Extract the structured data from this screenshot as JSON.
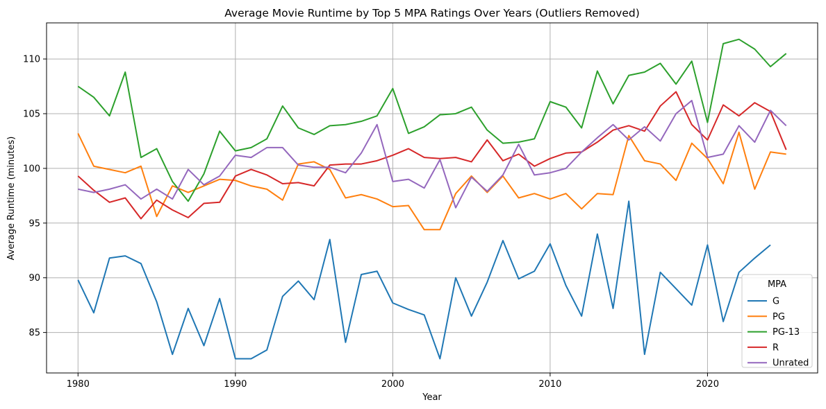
{
  "chart_data": {
    "type": "line",
    "title": "Average Movie Runtime by Top 5 MPA Ratings Over Years (Outliers Removed)",
    "xlabel": "Year",
    "ylabel": "Average Runtime (minutes)",
    "xlim": [
      1978,
      2027
    ],
    "ylim": [
      81.3,
      113.3
    ],
    "xticks": [
      1980,
      1990,
      2000,
      2010,
      2020
    ],
    "yticks": [
      85,
      90,
      95,
      100,
      105,
      110
    ],
    "grid": true,
    "legend": {
      "title": "MPA",
      "position": "lower right"
    },
    "x": [
      1980,
      1981,
      1982,
      1983,
      1984,
      1985,
      1986,
      1987,
      1988,
      1989,
      1990,
      1991,
      1992,
      1993,
      1994,
      1995,
      1996,
      1997,
      1998,
      1999,
      2000,
      2001,
      2002,
      2003,
      2004,
      2005,
      2006,
      2007,
      2008,
      2009,
      2010,
      2011,
      2012,
      2013,
      2014,
      2015,
      2016,
      2017,
      2018,
      2019,
      2020,
      2021,
      2022,
      2023,
      2024,
      2025
    ],
    "series": [
      {
        "name": "G",
        "color": "#1f77b4",
        "values": [
          89.8,
          86.8,
          91.8,
          92.0,
          91.3,
          87.8,
          83.0,
          87.2,
          83.8,
          88.1,
          82.6,
          82.6,
          83.4,
          88.3,
          89.7,
          88.0,
          93.5,
          84.1,
          90.3,
          90.6,
          87.7,
          87.1,
          86.6,
          82.6,
          90.0,
          86.5,
          89.6,
          93.4,
          89.9,
          90.6,
          93.1,
          89.3,
          86.5,
          94.0,
          87.2,
          97.0,
          83.0,
          90.5,
          89.0,
          87.5,
          93.0,
          86.0,
          90.5,
          91.8,
          93.0,
          null
        ]
      },
      {
        "name": "PG",
        "color": "#ff7f0e",
        "values": [
          103.2,
          100.2,
          99.9,
          99.6,
          100.2,
          95.6,
          98.4,
          97.8,
          98.4,
          99.0,
          98.9,
          98.4,
          98.1,
          97.1,
          100.4,
          100.6,
          99.9,
          97.3,
          97.6,
          97.2,
          96.5,
          96.6,
          94.4,
          94.4,
          97.7,
          99.3,
          97.8,
          99.3,
          97.3,
          97.7,
          97.2,
          97.7,
          96.3,
          97.7,
          97.6,
          103.0,
          100.7,
          100.4,
          98.9,
          102.3,
          100.9,
          98.6,
          103.3,
          98.1,
          101.5,
          101.3
        ]
      },
      {
        "name": "PG-13",
        "color": "#2ca02c",
        "values": [
          107.5,
          106.5,
          104.8,
          108.8,
          101.0,
          101.8,
          98.8,
          97.0,
          99.5,
          103.4,
          101.6,
          101.9,
          102.7,
          105.7,
          103.7,
          103.1,
          103.9,
          104.0,
          104.3,
          104.8,
          107.3,
          103.2,
          103.8,
          104.9,
          105.0,
          105.6,
          103.5,
          102.3,
          102.4,
          102.7,
          106.1,
          105.6,
          103.7,
          108.9,
          105.9,
          108.5,
          108.8,
          109.6,
          107.7,
          109.8,
          104.2,
          111.4,
          111.8,
          110.9,
          109.3,
          110.5
        ]
      },
      {
        "name": "R",
        "color": "#d62728",
        "values": [
          99.3,
          98.0,
          96.9,
          97.3,
          95.4,
          97.1,
          96.2,
          95.5,
          96.8,
          96.9,
          99.3,
          99.9,
          99.4,
          98.6,
          98.7,
          98.4,
          100.3,
          100.4,
          100.4,
          100.7,
          101.2,
          101.8,
          101.0,
          100.9,
          101.0,
          100.6,
          102.6,
          100.7,
          101.3,
          100.2,
          100.9,
          101.4,
          101.5,
          102.4,
          103.5,
          103.9,
          103.4,
          105.7,
          107.0,
          104.0,
          102.6,
          105.8,
          104.8,
          106.0,
          105.2,
          101.7
        ]
      },
      {
        "name": "Unrated",
        "color": "#9467bd",
        "values": [
          98.1,
          97.8,
          98.1,
          98.5,
          97.2,
          98.1,
          97.2,
          99.9,
          98.5,
          99.3,
          101.2,
          101.0,
          101.9,
          101.9,
          100.3,
          100.1,
          100.1,
          99.6,
          101.4,
          104.0,
          98.8,
          99.0,
          98.2,
          100.8,
          96.4,
          99.2,
          97.9,
          99.4,
          102.2,
          99.4,
          99.6,
          100.0,
          101.5,
          102.8,
          104.0,
          102.6,
          103.8,
          102.5,
          105.0,
          106.2,
          101.0,
          101.3,
          103.9,
          102.4,
          105.3,
          103.9
        ]
      }
    ]
  }
}
